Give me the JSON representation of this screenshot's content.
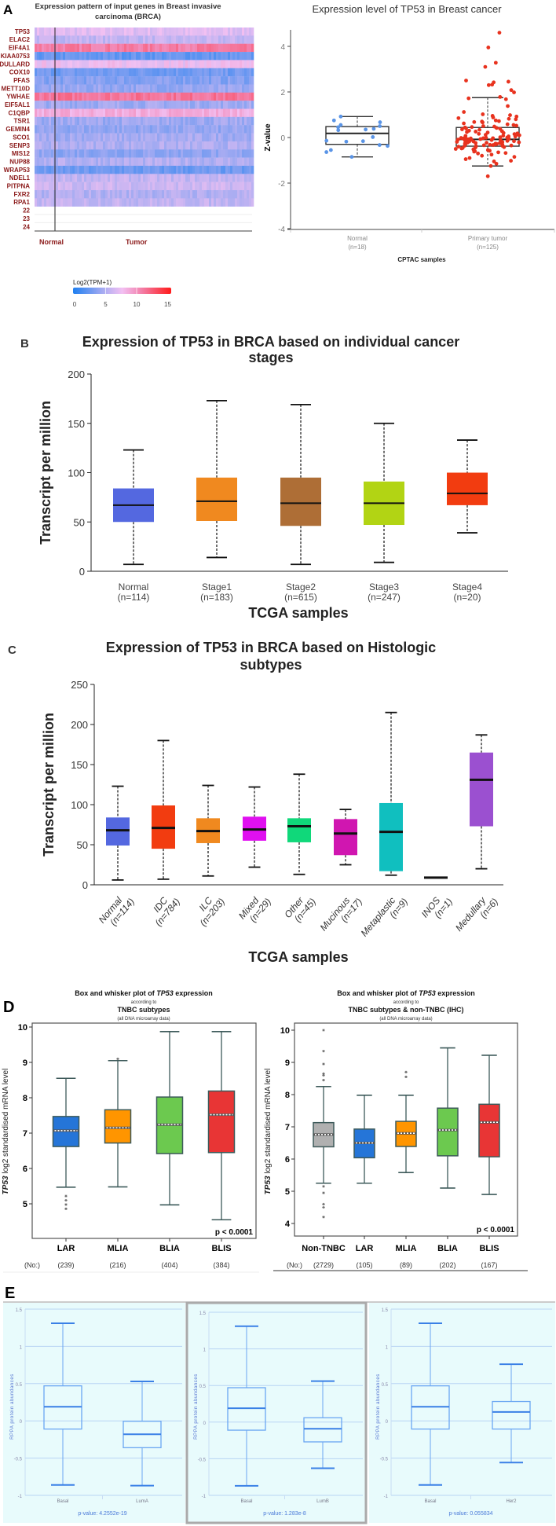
{
  "panel_labels": {
    "a": "A",
    "b": "B",
    "c": "C",
    "d": "D",
    "e": "E"
  },
  "chart_data": [
    {
      "type": "heatmap",
      "title_line1": "Expression pattern of input genes in Breast invasive",
      "title_line2": "carcinoma (BRCA)",
      "genes": [
        "TP53",
        "ELAC2",
        "EIF4A1",
        "KIAA0753",
        "DULLARD",
        "COX10",
        "PFAS",
        "METT10D",
        "YWHAE",
        "EIF5AL1",
        "C1QBP",
        "TSR1",
        "GEMIN4",
        "SCO1",
        "SENP3",
        "MIS12",
        "NUP88",
        "WRAP53",
        "NDEL1",
        "PITPNA",
        "FXR2",
        "RPA1"
      ],
      "row_levels": [
        6.8,
        5.6,
        10.6,
        2.4,
        7.4,
        2.8,
        3.4,
        4.0,
        11.0,
        4.4,
        8.4,
        4.3,
        3.9,
        4.5,
        4.9,
        3.8,
        5.0,
        2.6,
        5.6,
        6.0,
        5.0,
        5.6
      ],
      "empty_rows": [
        "22",
        "23",
        "24"
      ],
      "groups": [
        "Normal",
        "Tumor"
      ],
      "legend": {
        "title": "Log2(TPM+1)",
        "ticks": [
          "0",
          "5",
          "10",
          "15"
        ],
        "range": [
          0,
          15
        ]
      },
      "colors": {
        "low": "#1f7ff0",
        "mid_low": "#b4b0f2",
        "mid": "#f2c0f2",
        "mid_high": "#f28ab8",
        "high": "#ff1a1a"
      }
    },
    {
      "type": "box+scatter",
      "title": "Expression level of TP53 in Breast cancer",
      "ylabel": "Z-value",
      "xlabel": "CPTAC samples",
      "ylim": [
        -4,
        4.7
      ],
      "yticks": [
        "4",
        "2",
        "0",
        "-2",
        "-4"
      ],
      "groups": [
        {
          "name": "Normal",
          "n_label": "(n=18)",
          "color": "#5a94e6",
          "stats": {
            "min": -0.85,
            "q1": -0.3,
            "median": 0.18,
            "q3": 0.48,
            "max": 0.92
          },
          "points": [
            0.92,
            0.75,
            0.67,
            0.55,
            0.5,
            0.45,
            0.38,
            0.35,
            0.32,
            0.02,
            -0.14,
            -0.18,
            -0.16,
            -0.33,
            -0.37,
            -0.55,
            -0.64,
            -0.85
          ]
        },
        {
          "name": "Primary tumor",
          "n_label": "(n=125)",
          "color": "#e8321e",
          "stats": {
            "min": -1.25,
            "q1": -0.38,
            "median": -0.08,
            "q3": 0.44,
            "max": 1.75
          },
          "points": [
            4.6,
            3.95,
            3.28,
            3.1,
            2.5,
            2.45,
            2.42,
            2.32,
            2.3,
            2.08,
            1.98,
            1.78,
            1.72,
            1.68,
            1.38,
            1.12,
            1.02,
            0.98,
            0.95,
            0.92,
            0.88,
            0.85,
            0.82,
            0.8,
            0.75,
            0.72,
            0.7,
            0.68,
            0.66,
            0.62,
            0.58,
            0.55,
            0.52,
            0.5,
            0.48,
            0.46,
            0.44,
            0.42,
            0.4,
            0.38,
            0.36,
            0.34,
            0.3,
            0.28,
            0.26,
            0.24,
            0.22,
            0.2,
            0.18,
            0.16,
            0.15,
            0.13,
            0.12,
            0.1,
            0.08,
            0.07,
            0.05,
            0.04,
            0.02,
            0.01,
            0.0,
            -0.01,
            -0.02,
            -0.03,
            -0.04,
            -0.05,
            -0.06,
            -0.07,
            -0.08,
            -0.08,
            -0.09,
            -0.1,
            -0.11,
            -0.12,
            -0.13,
            -0.14,
            -0.15,
            -0.16,
            -0.17,
            -0.18,
            -0.19,
            -0.2,
            -0.21,
            -0.22,
            -0.23,
            -0.24,
            -0.25,
            -0.26,
            -0.27,
            -0.28,
            -0.29,
            -0.3,
            -0.31,
            -0.32,
            -0.33,
            -0.34,
            -0.35,
            -0.36,
            -0.37,
            -0.38,
            -0.4,
            -0.42,
            -0.44,
            -0.46,
            -0.48,
            -0.5,
            -0.52,
            -0.55,
            -0.58,
            -0.6,
            -0.62,
            -0.65,
            -0.68,
            -0.7,
            -0.75,
            -0.8,
            -0.85,
            -0.9,
            -0.95,
            -1.02,
            -1.05,
            -1.15,
            -1.25,
            -1.7,
            -0.03
          ]
        }
      ]
    },
    {
      "type": "box",
      "title_line1": "Expression of TP53 in BRCA based on individual cancer",
      "title_line2": "stages",
      "ylabel": "Transcript per million",
      "xlabel": "TCGA samples",
      "ylim": [
        0,
        200
      ],
      "yticks": [
        "0",
        "50",
        "100",
        "150",
        "200"
      ],
      "groups": [
        {
          "name": "Normal",
          "n_label": "(n=114)",
          "color": "#5468e0",
          "stats": {
            "min": 7,
            "q1": 50,
            "median": 67,
            "q3": 84,
            "max": 123
          }
        },
        {
          "name": "Stage1",
          "n_label": "(n=183)",
          "color": "#f0891f",
          "stats": {
            "min": 14,
            "q1": 51,
            "median": 71,
            "q3": 95,
            "max": 173
          }
        },
        {
          "name": "Stage2",
          "n_label": "(n=615)",
          "color": "#ae6e36",
          "stats": {
            "min": 7,
            "q1": 46,
            "median": 69,
            "q3": 95,
            "max": 169
          }
        },
        {
          "name": "Stage3",
          "n_label": "(n=247)",
          "color": "#b2d414",
          "stats": {
            "min": 9,
            "q1": 47,
            "median": 69,
            "q3": 91,
            "max": 150
          }
        },
        {
          "name": "Stage4",
          "n_label": "(n=20)",
          "color": "#f23c10",
          "stats": {
            "min": 39,
            "q1": 67,
            "median": 79,
            "q3": 100,
            "max": 133
          }
        }
      ]
    },
    {
      "type": "box",
      "title_line1": "Expression of TP53 in BRCA based on Histologic",
      "title_line2": "subtypes",
      "ylabel": "Transcript per million",
      "xlabel": "TCGA samples",
      "ylim": [
        0,
        250
      ],
      "yticks": [
        "0",
        "50",
        "100",
        "150",
        "200",
        "250"
      ],
      "groups": [
        {
          "name": "Normal",
          "n_label": "(n=114)",
          "color": "#5468e0",
          "stats": {
            "min": 6,
            "q1": 49,
            "median": 68,
            "q3": 84,
            "max": 123
          }
        },
        {
          "name": "IDC",
          "n_label": "(n=784)",
          "color": "#f23c10",
          "stats": {
            "min": 7,
            "q1": 45,
            "median": 71,
            "q3": 99,
            "max": 180
          }
        },
        {
          "name": "ILC",
          "n_label": "(n=203)",
          "color": "#f0891f",
          "stats": {
            "min": 11,
            "q1": 52,
            "median": 67,
            "q3": 83,
            "max": 124
          }
        },
        {
          "name": "Mixed",
          "n_label": "(n=29)",
          "color": "#e010f0",
          "stats": {
            "min": 22,
            "q1": 55,
            "median": 69,
            "q3": 85,
            "max": 122
          }
        },
        {
          "name": "Other",
          "n_label": "(n=45)",
          "color": "#10d87a",
          "stats": {
            "min": 13,
            "q1": 53,
            "median": 73,
            "q3": 83,
            "max": 138
          }
        },
        {
          "name": "Mucinous",
          "n_label": "(n=17)",
          "color": "#d016b0",
          "stats": {
            "min": 25,
            "q1": 37,
            "median": 64,
            "q3": 82,
            "max": 94
          }
        },
        {
          "name": "Metaplastic",
          "n_label": "(n=9)",
          "color": "#10bfbf",
          "stats": {
            "min": 12,
            "q1": 17,
            "median": 66,
            "q3": 102,
            "max": 215
          }
        },
        {
          "name": "INOS",
          "n_label": "(n=1)",
          "color": "#000000",
          "stats": {
            "min": 9,
            "q1": 9,
            "median": 9,
            "q3": 9,
            "max": 9
          }
        },
        {
          "name": "Medullary",
          "n_label": "(n=6)",
          "color": "#9b50d0",
          "stats": {
            "min": 20,
            "q1": 73,
            "median": 131,
            "q3": 165,
            "max": 187
          }
        }
      ]
    },
    {
      "type": "box",
      "title_prefix": "Box and whisker plot of ",
      "title_gene": "TP53",
      "title_suffix": " expression",
      "title_line2": "according to",
      "title_line3": "TNBC subtypes",
      "title_line4": "(all DNA microarray data)",
      "ylabel_gene": "TP53",
      "ylabel": " log2 standardised mRNA level",
      "ylim": [
        3.9,
        10.1
      ],
      "yticks": [
        "5",
        "6",
        "7",
        "8",
        "9",
        "10"
      ],
      "p_value": "p < 0.0001",
      "count_label": "(No:)",
      "groups": [
        {
          "name": "LAR",
          "count": "(239)",
          "color": "#2575d8",
          "stats": {
            "min": 5.47,
            "q1": 6.62,
            "median": 7.07,
            "q3": 7.47,
            "max": 8.55
          },
          "outliers": [
            5.22,
            5.1,
            4.98,
            4.86
          ]
        },
        {
          "name": "MLIA",
          "count": "(216)",
          "color": "#ff9500",
          "stats": {
            "min": 5.48,
            "q1": 6.72,
            "median": 7.15,
            "q3": 7.66,
            "max": 9.05
          },
          "outliers": [
            9.1
          ]
        },
        {
          "name": "BLIA",
          "count": "(404)",
          "color": "#6cc94f",
          "stats": {
            "min": 4.97,
            "q1": 6.42,
            "median": 7.24,
            "q3": 8.02,
            "max": 9.87
          },
          "outliers": []
        },
        {
          "name": "BLIS",
          "count": "(384)",
          "color": "#e83535",
          "stats": {
            "min": 4.55,
            "q1": 6.45,
            "median": 7.52,
            "q3": 8.19,
            "max": 9.87
          },
          "outliers": []
        }
      ]
    },
    {
      "type": "box",
      "title_prefix": "Box and whisker plot of ",
      "title_gene": "TP53",
      "title_suffix": " expression",
      "title_line2": "according to",
      "title_line3": "TNBC subtypes & non-TNBC (IHC)",
      "title_line4": "(all DNA microarray data)",
      "ylabel_gene": "TP53",
      "ylabel": " log2 standardised mRNA level",
      "ylim": [
        3.6,
        10.3
      ],
      "yticks": [
        "4",
        "5",
        "6",
        "7",
        "8",
        "9",
        "10"
      ],
      "p_value": "p < 0.0001",
      "count_label": "(No:)",
      "groups": [
        {
          "name": "Non-TNBC",
          "count": "(2729)",
          "color": "#b0b0b0",
          "stats": {
            "min": 5.25,
            "q1": 6.38,
            "median": 6.76,
            "q3": 7.13,
            "max": 8.25
          },
          "outliers": [
            10.0,
            9.35,
            8.95,
            8.65,
            8.6,
            8.45,
            5.15,
            4.95,
            4.6,
            4.5,
            4.2
          ]
        },
        {
          "name": "LAR",
          "count": "(105)",
          "color": "#2575d8",
          "stats": {
            "min": 5.25,
            "q1": 6.04,
            "median": 6.5,
            "q3": 6.93,
            "max": 7.98
          },
          "outliers": []
        },
        {
          "name": "MLIA",
          "count": "(89)",
          "color": "#ff9500",
          "stats": {
            "min": 5.58,
            "q1": 6.39,
            "median": 6.8,
            "q3": 7.17,
            "max": 7.98
          },
          "outliers": [
            8.7,
            8.55
          ]
        },
        {
          "name": "BLIA",
          "count": "(202)",
          "color": "#6cc94f",
          "stats": {
            "min": 5.1,
            "q1": 6.1,
            "median": 6.9,
            "q3": 7.58,
            "max": 9.45
          },
          "outliers": []
        },
        {
          "name": "BLIS",
          "count": "(167)",
          "color": "#e83535",
          "stats": {
            "min": 4.9,
            "q1": 6.07,
            "median": 7.14,
            "q3": 7.7,
            "max": 9.22
          },
          "outliers": []
        }
      ]
    },
    {
      "type": "box",
      "ylabel": "RPPA protein abundances",
      "ylim": [
        -1,
        1.5
      ],
      "yticks": [
        "-1",
        "-0.5",
        "0",
        "0.5",
        "1",
        "1.5"
      ],
      "p_value": "p-value: 4.2552e-19",
      "groups": [
        {
          "name": "Basal",
          "stats": {
            "min": -0.86,
            "q1": -0.11,
            "median": 0.19,
            "q3": 0.47,
            "max": 1.31
          }
        },
        {
          "name": "LumA",
          "stats": {
            "min": -0.87,
            "q1": -0.36,
            "median": -0.18,
            "q3": -0.005,
            "max": 0.53
          }
        }
      ]
    },
    {
      "type": "box",
      "ylabel": "RPPA protein abundances",
      "ylim": [
        -1,
        1.5
      ],
      "yticks": [
        "-1",
        "-0.5",
        "0",
        "0.5",
        "1",
        "1.5"
      ],
      "p_value": "p-value: 1.283e-8",
      "groups": [
        {
          "name": "Basal",
          "stats": {
            "min": -0.87,
            "q1": -0.11,
            "median": 0.19,
            "q3": 0.47,
            "max": 1.31
          }
        },
        {
          "name": "LumB",
          "stats": {
            "min": -0.63,
            "q1": -0.27,
            "median": -0.09,
            "q3": 0.06,
            "max": 0.56
          }
        }
      ]
    },
    {
      "type": "box",
      "ylabel": "RPPA protein abundances",
      "ylim": [
        -1,
        1.5
      ],
      "yticks": [
        "-1",
        "-0.5",
        "0",
        "0.5",
        "1",
        "1.5"
      ],
      "p_value": "p-value: 0.055834",
      "groups": [
        {
          "name": "Basal",
          "stats": {
            "min": -0.86,
            "q1": -0.11,
            "median": 0.19,
            "q3": 0.47,
            "max": 1.31
          }
        },
        {
          "name": "Her2",
          "stats": {
            "min": -0.56,
            "q1": -0.11,
            "median": 0.12,
            "q3": 0.26,
            "max": 0.76
          }
        }
      ]
    }
  ]
}
